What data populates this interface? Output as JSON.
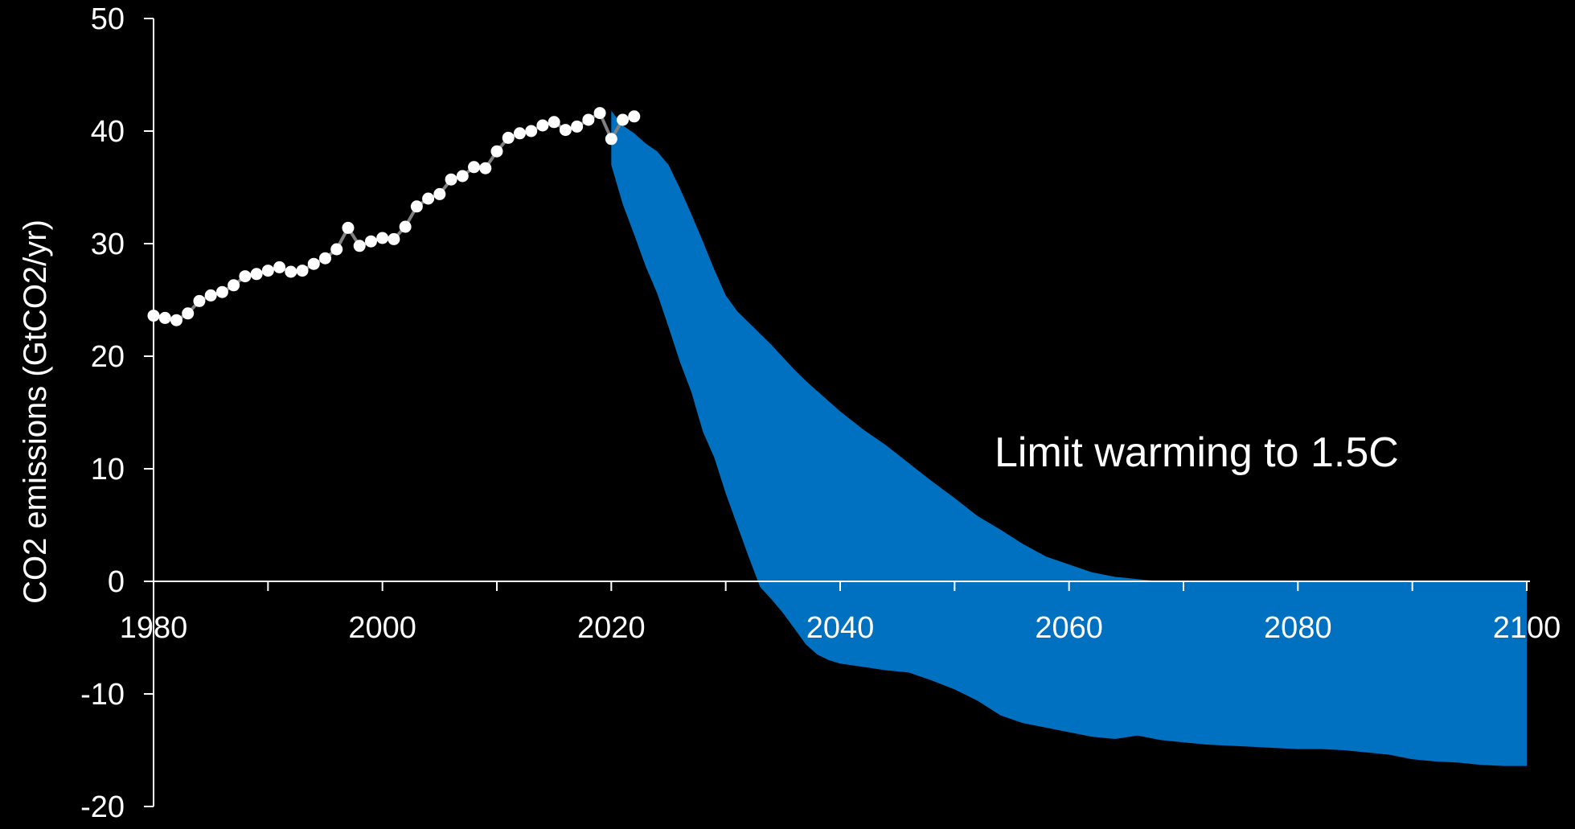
{
  "chart_data": {
    "type": "area",
    "title": "",
    "ylabel": "CO2 emissions (GtCO2/yr)",
    "xlabel": "",
    "xlim": [
      1980,
      2100
    ],
    "ylim": [
      -20,
      50
    ],
    "x_ticks": [
      1980,
      2000,
      2020,
      2040,
      2060,
      2080,
      2100
    ],
    "y_ticks": [
      50,
      40,
      30,
      20,
      10,
      0,
      -10,
      -20
    ],
    "grid": false,
    "annotation": "Limit warming to 1.5C",
    "colors": {
      "band": "#0070c0",
      "historical": "#ffffff",
      "historical_line": "#808080",
      "axis": "#ffffff",
      "background": "#000000"
    },
    "series": [
      {
        "type": "line",
        "x": [
          1980,
          1981,
          1982,
          1983,
          1984,
          1985,
          1986,
          1987,
          1988,
          1989,
          1990,
          1991,
          1992,
          1993,
          1994,
          1995,
          1996,
          1997,
          1998,
          1999,
          2000,
          2001,
          2002,
          2003,
          2004,
          2005,
          2006,
          2007,
          2008,
          2009,
          2010,
          2011,
          2012,
          2013,
          2014,
          2015,
          2016,
          2017,
          2018,
          2019,
          2020,
          2021,
          2022
        ],
        "values": [
          23.6,
          23.4,
          23.2,
          23.8,
          24.9,
          25.4,
          25.7,
          26.3,
          27.1,
          27.3,
          27.6,
          27.9,
          27.5,
          27.6,
          28.2,
          28.7,
          29.5,
          31.4,
          29.8,
          30.2,
          30.5,
          30.4,
          31.5,
          33.3,
          34.0,
          34.4,
          35.7,
          36.0,
          36.8,
          36.7,
          38.2,
          39.4,
          39.8,
          40.0,
          40.5,
          40.8,
          40.1,
          40.4,
          41.0,
          41.6,
          39.3,
          41.0,
          41.3
        ]
      },
      {
        "type": "band",
        "x": [
          2020,
          2021,
          2022,
          2023,
          2024,
          2025,
          2026,
          2027,
          2028,
          2029,
          2030,
          2031,
          2032,
          2033,
          2034,
          2035,
          2036,
          2037,
          2038,
          2039,
          2040,
          2042,
          2044,
          2046,
          2048,
          2050,
          2052,
          2054,
          2056,
          2058,
          2060,
          2062,
          2064,
          2066,
          2068,
          2070,
          2072,
          2074,
          2076,
          2078,
          2080,
          2082,
          2084,
          2086,
          2088,
          2090,
          2092,
          2094,
          2096,
          2098,
          2100
        ],
        "upper": [
          41.8,
          40.5,
          39.8,
          38.9,
          38.2,
          37.0,
          34.9,
          32.6,
          30.2,
          27.7,
          25.4,
          24.0,
          23.0,
          22.0,
          21.0,
          19.9,
          18.8,
          17.8,
          16.9,
          16.0,
          15.1,
          13.5,
          12.1,
          10.5,
          8.9,
          7.4,
          5.8,
          4.6,
          3.3,
          2.2,
          1.5,
          0.8,
          0.4,
          0.2,
          0.0,
          0.0,
          0.0,
          0.0,
          0.0,
          0.0,
          0.0,
          0.0,
          0.0,
          0.0,
          0.0,
          0.0,
          0.0,
          0.0,
          0.0,
          0.0,
          0.0
        ],
        "lower": [
          37.0,
          33.5,
          30.8,
          28.0,
          25.6,
          22.6,
          19.5,
          16.8,
          13.3,
          11.0,
          7.8,
          5.0,
          2.2,
          -0.5,
          -1.6,
          -2.8,
          -4.2,
          -5.6,
          -6.5,
          -7.0,
          -7.3,
          -7.6,
          -7.9,
          -8.1,
          -8.8,
          -9.6,
          -10.6,
          -11.9,
          -12.6,
          -13.0,
          -13.4,
          -13.8,
          -14.0,
          -13.7,
          -14.1,
          -14.3,
          -14.5,
          -14.6,
          -14.7,
          -14.8,
          -14.9,
          -14.9,
          -15.0,
          -15.2,
          -15.4,
          -15.8,
          -16.0,
          -16.1,
          -16.3,
          -16.4,
          -16.4
        ]
      }
    ]
  }
}
